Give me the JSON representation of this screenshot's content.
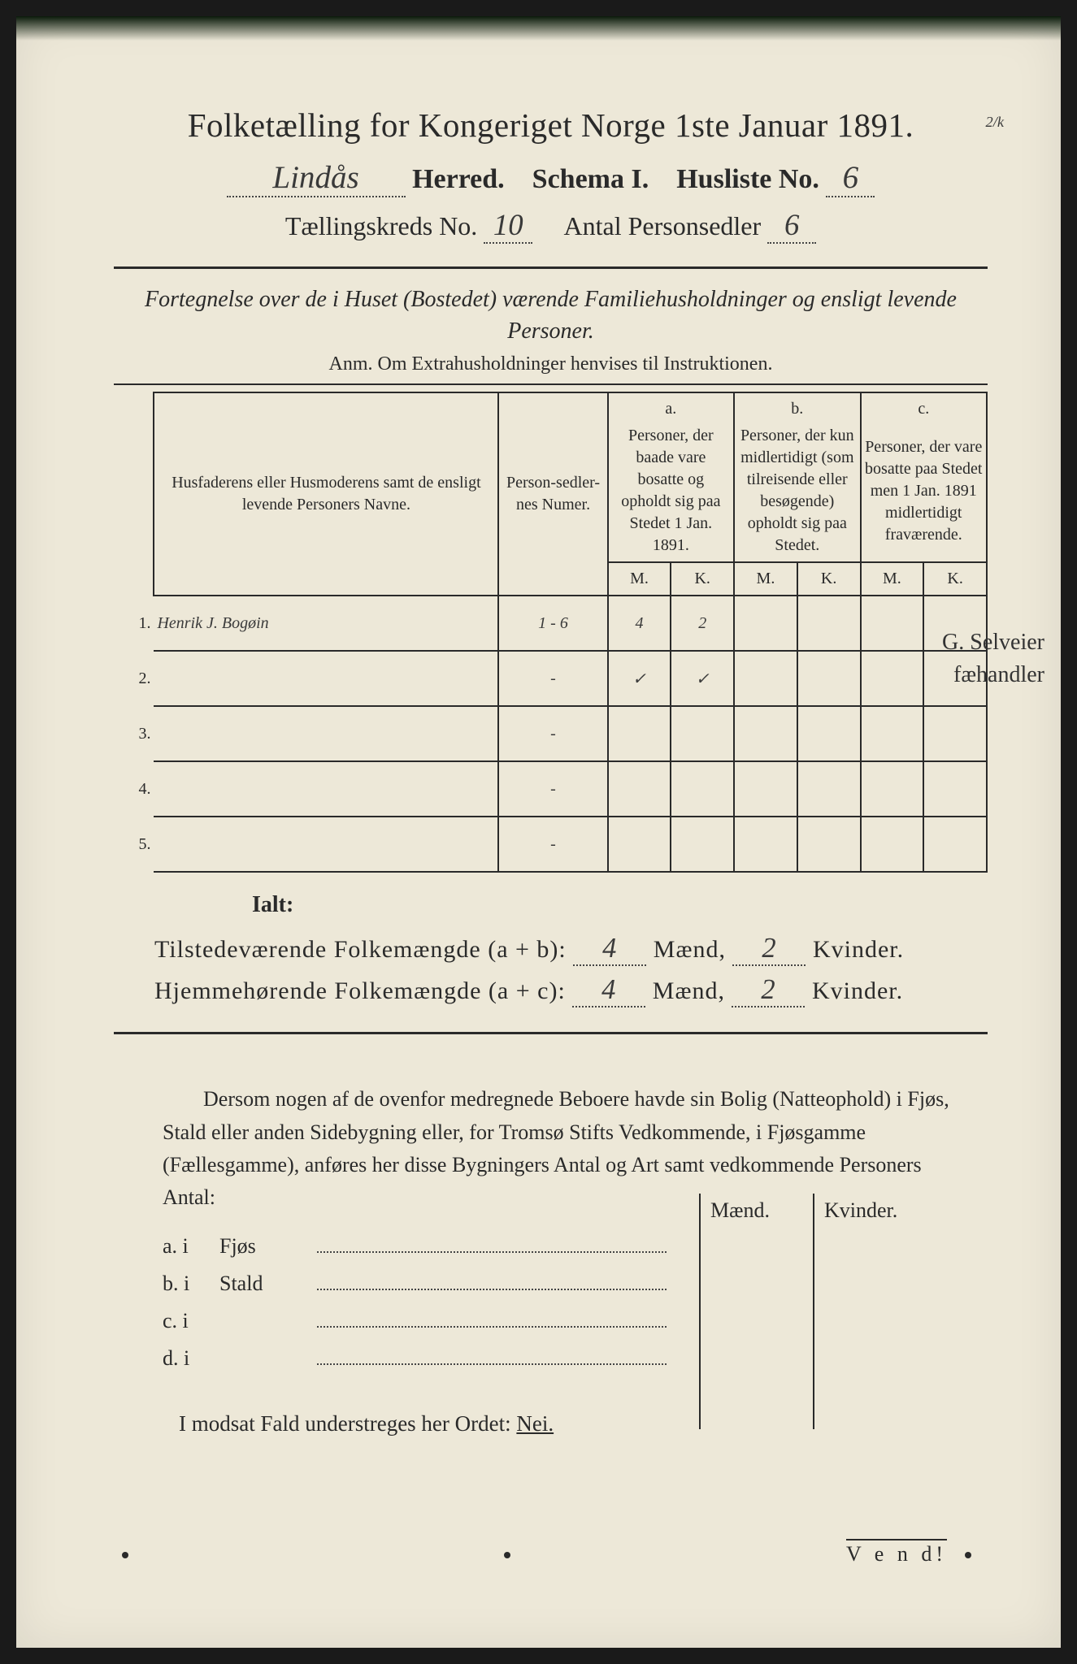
{
  "title": "Folketælling for Kongeriget Norge 1ste Januar 1891.",
  "top_annot": "2/k",
  "herred": {
    "value": "Lindås",
    "label": "Herred."
  },
  "schema": "Schema I.",
  "husliste": {
    "label": "Husliste No.",
    "value": "6"
  },
  "kreds": {
    "label": "Tællingskreds No.",
    "value": "10"
  },
  "personsedler": {
    "label": "Antal Personsedler",
    "value": "6"
  },
  "subtitle": "Fortegnelse over de i Huset (Bostedet) værende Familiehusholdninger og ensligt levende Personer.",
  "anm": "Anm.  Om Extrahusholdninger henvises til Instruktionen.",
  "columns": {
    "names": "Husfaderens eller Husmoderens samt de ensligt levende Personers Navne.",
    "numer": "Person-sedler-nes Numer.",
    "a_label": "a.",
    "a": "Personer, der baade vare bosatte og opholdt sig paa Stedet 1 Jan. 1891.",
    "b_label": "b.",
    "b": "Personer, der kun midlertidigt (som tilreisende eller besøgende) opholdt sig paa Stedet.",
    "c_label": "c.",
    "c": "Personer, der vare bosatte paa Stedet men 1 Jan. 1891 midlertidigt fraværende.",
    "M": "M.",
    "K": "K."
  },
  "rows": [
    {
      "n": "1.",
      "name": "Henrik J. Bogøin",
      "numer": "1 - 6",
      "aM": "4",
      "aK": "2",
      "bM": "",
      "bK": "",
      "cM": "",
      "cK": ""
    },
    {
      "n": "2.",
      "name": "",
      "numer": "-",
      "aM": "✓",
      "aK": "✓",
      "bM": "",
      "bK": "",
      "cM": "",
      "cK": ""
    },
    {
      "n": "3.",
      "name": "",
      "numer": "-",
      "aM": "",
      "aK": "",
      "bM": "",
      "bK": "",
      "cM": "",
      "cK": ""
    },
    {
      "n": "4.",
      "name": "",
      "numer": "-",
      "aM": "",
      "aK": "",
      "bM": "",
      "bK": "",
      "cM": "",
      "cK": ""
    },
    {
      "n": "5.",
      "name": "",
      "numer": "-",
      "aM": "",
      "aK": "",
      "bM": "",
      "bK": "",
      "cM": "",
      "cK": ""
    }
  ],
  "margin_notes": {
    "line1": "G. Selveier",
    "line2": "fæhandler"
  },
  "ialt": "Ialt:",
  "totals": {
    "present": {
      "label": "Tilstedeværende Folkemængde (a + b):",
      "m": "4",
      "m_lab": "Mænd,",
      "k": "2",
      "k_lab": "Kvinder."
    },
    "resident": {
      "label": "Hjemmehørende Folkemængde (a + c):",
      "m": "4",
      "m_lab": "Mænd,",
      "k": "2",
      "k_lab": "Kvinder."
    }
  },
  "para": "Dersom nogen af de ovenfor medregnede Beboere havde sin Bolig (Natteophold) i Fjøs, Stald eller anden Sidebygning eller, for Tromsø Stifts Vedkommende, i Fjøsgamme (Fællesgamme), anføres her disse Bygningers Antal og Art samt vedkommende Personers Antal:",
  "mk_labels": {
    "m": "Mænd.",
    "k": "Kvinder."
  },
  "outbuild": [
    {
      "lab": "a.  i",
      "typ": "Fjøs"
    },
    {
      "lab": "b.  i",
      "typ": "Stald"
    },
    {
      "lab": "c.  i",
      "typ": ""
    },
    {
      "lab": "d.  i",
      "typ": ""
    }
  ],
  "nei": {
    "text": "I modsat Fald understreges her Ordet:",
    "word": "Nei."
  },
  "vend": "V e n d!",
  "colors": {
    "paper": "#ede8d8",
    "ink": "#2a2a2a",
    "handwriting": "#3a3a3a"
  }
}
